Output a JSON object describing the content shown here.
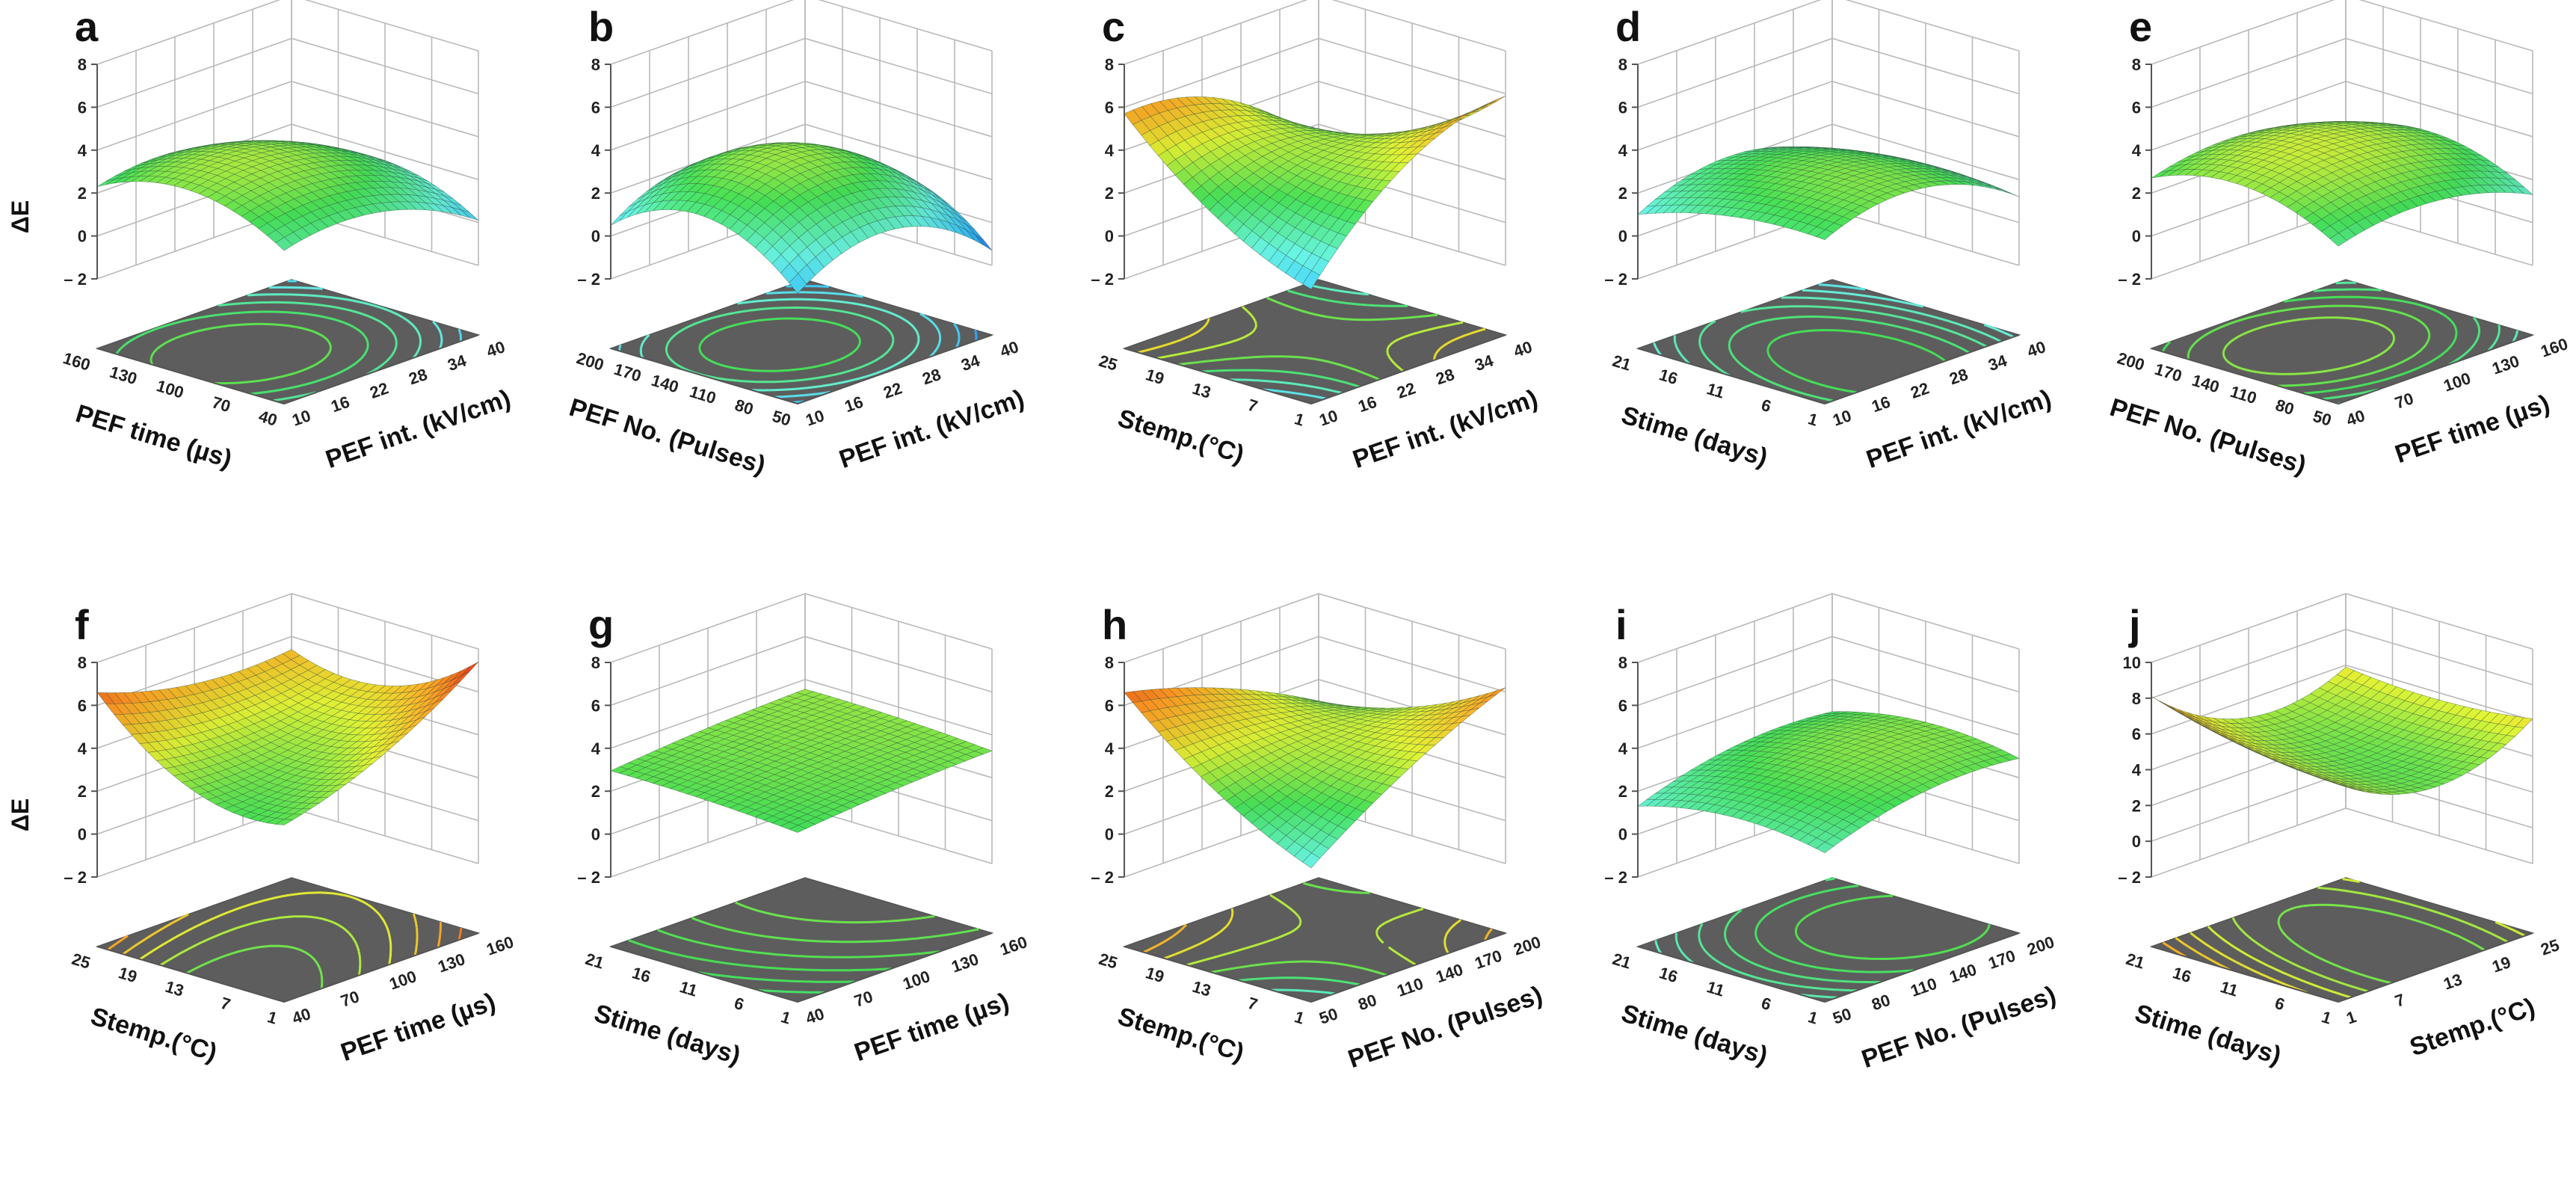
{
  "figure": {
    "zlabel": "ΔE",
    "palette": [
      "#2233cc",
      "#33bbff",
      "#66eedd",
      "#44dd55",
      "#ddee33",
      "#ff9922",
      "#dd2211"
    ]
  },
  "chart_data": [
    {
      "letter": "a",
      "type": "surface3d",
      "zlabel": "ΔE",
      "xlabel": "PEF int. (kV/cm)",
      "xticks": [
        "10",
        "16",
        "22",
        "28",
        "34",
        "40"
      ],
      "ylabel": "PEF time (µs)",
      "yticks": [
        "40",
        "70",
        "100",
        "130",
        "160"
      ],
      "zticks": [
        "– 2",
        "0",
        "2",
        "4",
        "6",
        "8"
      ],
      "zlim": [
        -2,
        8
      ],
      "coef": {
        "c": 3.6,
        "x": -0.9,
        "y": 0.2,
        "x2": -1.1,
        "y2": -1.3,
        "xy": 0.0
      }
    },
    {
      "letter": "b",
      "type": "surface3d",
      "zlabel": "",
      "xlabel": "PEF int. (kV/cm)",
      "xticks": [
        "10",
        "16",
        "22",
        "28",
        "34",
        "40"
      ],
      "ylabel": "PEF No. (Pulses)",
      "yticks": [
        "50",
        "80",
        "110",
        "140",
        "170",
        "200"
      ],
      "zticks": [
        "– 2",
        "0",
        "2",
        "4",
        "6",
        "8"
      ],
      "zlim": [
        -2,
        8
      ],
      "coef": {
        "c": 3.6,
        "x": -0.6,
        "y": 0.3,
        "x2": -2.0,
        "y2": -2.0,
        "xy": 0.0
      }
    },
    {
      "letter": "c",
      "type": "surface3d",
      "zlabel": "",
      "xlabel": "PEF int. (kV/cm)",
      "xticks": [
        "10",
        "16",
        "22",
        "28",
        "34",
        "40"
      ],
      "ylabel": "Stemp.(°C)",
      "yticks": [
        "1",
        "7",
        "13",
        "19",
        "25"
      ],
      "zticks": [
        "– 2",
        "0",
        "2",
        "4",
        "6",
        "8"
      ],
      "zlim": [
        -2,
        8
      ],
      "coef": {
        "c": 3.8,
        "x": 0.3,
        "y": 0.2,
        "x2": -1.4,
        "y2": 0.8,
        "xy": -2.6
      }
    },
    {
      "letter": "d",
      "type": "surface3d",
      "zlabel": "",
      "xlabel": "PEF int. (kV/cm)",
      "xticks": [
        "10",
        "16",
        "22",
        "28",
        "34",
        "40"
      ],
      "ylabel": "Stime (days)",
      "yticks": [
        "1",
        "6",
        "11",
        "16",
        "21"
      ],
      "zticks": [
        "– 2",
        "0",
        "2",
        "4",
        "6",
        "8"
      ],
      "zlim": [
        -2,
        8
      ],
      "coef": {
        "c": 3.2,
        "x": -0.4,
        "y": -0.5,
        "x2": -1.4,
        "y2": -0.5,
        "xy": 0.2
      }
    },
    {
      "letter": "e",
      "type": "surface3d",
      "zlabel": "",
      "xlabel": "PEF time (µs)",
      "xticks": [
        "40",
        "70",
        "100",
        "130",
        "160"
      ],
      "ylabel": "PEF No. (Pulses)",
      "yticks": [
        "50",
        "80",
        "110",
        "140",
        "170",
        "200"
      ],
      "zticks": [
        "– 2",
        "0",
        "2",
        "4",
        "6",
        "8"
      ],
      "zlim": [
        -2,
        8
      ],
      "coef": {
        "c": 4.1,
        "x": -0.4,
        "y": 0.3,
        "x2": -0.9,
        "y2": -1.2,
        "xy": 0.0
      }
    },
    {
      "letter": "f",
      "type": "surface3d",
      "zlabel": "ΔE",
      "xlabel": "PEF time (µs)",
      "xticks": [
        "40",
        "70",
        "100",
        "130",
        "160"
      ],
      "ylabel": "Stemp.(°C)",
      "yticks": [
        "1",
        "7",
        "13",
        "19",
        "25"
      ],
      "zticks": [
        "– 2",
        "0",
        "2",
        "4",
        "6",
        "8"
      ],
      "zlim": [
        -2,
        8
      ],
      "coef": {
        "c": 3.6,
        "x": 0.8,
        "y": 0.4,
        "x2": 0.6,
        "y2": 1.4,
        "xy": -1.4
      }
    },
    {
      "letter": "g",
      "type": "surface3d",
      "zlabel": "",
      "xlabel": "PEF time (µs)",
      "xticks": [
        "40",
        "70",
        "100",
        "130",
        "160"
      ],
      "ylabel": "Stime (days)",
      "yticks": [
        "1",
        "6",
        "11",
        "16",
        "21"
      ],
      "zticks": [
        "– 2",
        "0",
        "2",
        "4",
        "6",
        "8"
      ],
      "zlim": [
        -2,
        8
      ],
      "coef": {
        "c": 3.3,
        "x": 0.3,
        "y": 0.15,
        "x2": -0.1,
        "y2": -0.1,
        "xy": 0.0
      }
    },
    {
      "letter": "h",
      "type": "surface3d",
      "zlabel": "",
      "xlabel": "PEF No. (Pulses)",
      "xticks": [
        "50",
        "80",
        "110",
        "140",
        "170",
        "200"
      ],
      "ylabel": "Stemp.(°C)",
      "yticks": [
        "1",
        "7",
        "13",
        "19",
        "25"
      ],
      "zticks": [
        "– 2",
        "0",
        "2",
        "4",
        "6",
        "8"
      ],
      "zlim": [
        -2,
        8
      ],
      "coef": {
        "c": 4.0,
        "x": 0.4,
        "y": 0.6,
        "x2": -0.4,
        "y2": 0.6,
        "xy": -2.2
      }
    },
    {
      "letter": "i",
      "type": "surface3d",
      "zlabel": "",
      "xlabel": "PEF No. (Pulses)",
      "xticks": [
        "50",
        "80",
        "110",
        "140",
        "170",
        "200"
      ],
      "ylabel": "Stime (days)",
      "yticks": [
        "1",
        "6",
        "11",
        "16",
        "21"
      ],
      "zticks": [
        "– 2",
        "0",
        "2",
        "4",
        "6",
        "8"
      ],
      "zlim": [
        -2,
        8
      ],
      "coef": {
        "c": 3.3,
        "x": 0.6,
        "y": -0.2,
        "x2": -0.6,
        "y2": -0.6,
        "xy": 0.0
      }
    },
    {
      "letter": "j",
      "type": "surface3d",
      "zlabel": "",
      "xlabel": "Stemp.(°C)",
      "xticks": [
        "1",
        "7",
        "13",
        "19",
        "25"
      ],
      "ylabel": "Stime (days)",
      "yticks": [
        "1",
        "6",
        "11",
        "16",
        "21"
      ],
      "zticks": [
        "– 2",
        "0",
        "2",
        "4",
        "6",
        "8",
        "10"
      ],
      "zlim": [
        -2,
        10
      ],
      "coef": {
        "c": 4.2,
        "x": -0.6,
        "y": 0.4,
        "x2": 2.0,
        "y2": 0.4,
        "xy": -0.5
      }
    }
  ]
}
